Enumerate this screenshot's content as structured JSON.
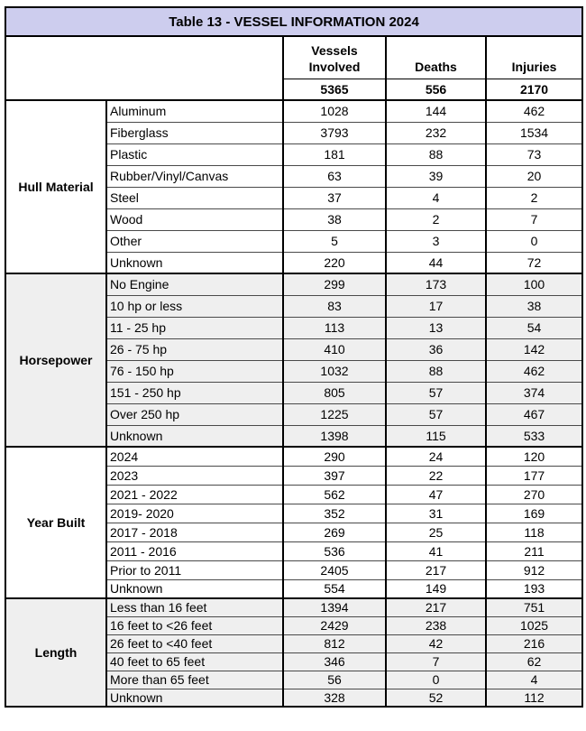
{
  "table": {
    "title": "Table 13 - VESSEL INFORMATION 2024",
    "columns": [
      "Vessels\nInvolved",
      "Deaths",
      "Injuries"
    ],
    "totals": [
      "5365",
      "556",
      "2170"
    ],
    "sections": [
      {
        "label": "Hull Material",
        "rows": [
          {
            "category": "Aluminum",
            "values": [
              "1028",
              "144",
              "462"
            ]
          },
          {
            "category": "Fiberglass",
            "values": [
              "3793",
              "232",
              "1534"
            ]
          },
          {
            "category": "Plastic",
            "values": [
              "181",
              "88",
              "73"
            ]
          },
          {
            "category": "Rubber/Vinyl/Canvas",
            "values": [
              "63",
              "39",
              "20"
            ]
          },
          {
            "category": "Steel",
            "values": [
              "37",
              "4",
              "2"
            ]
          },
          {
            "category": "Wood",
            "values": [
              "38",
              "2",
              "7"
            ]
          },
          {
            "category": "Other",
            "values": [
              "5",
              "3",
              "0"
            ]
          },
          {
            "category": "Unknown",
            "values": [
              "220",
              "44",
              "72"
            ]
          }
        ]
      },
      {
        "label": "Horsepower",
        "rows": [
          {
            "category": "No Engine",
            "values": [
              "299",
              "173",
              "100"
            ]
          },
          {
            "category": "10 hp or less",
            "values": [
              "83",
              "17",
              "38"
            ]
          },
          {
            "category": "11 - 25 hp",
            "values": [
              "113",
              "13",
              "54"
            ]
          },
          {
            "category": "26 - 75 hp",
            "values": [
              "410",
              "36",
              "142"
            ]
          },
          {
            "category": "76 - 150 hp",
            "values": [
              "1032",
              "88",
              "462"
            ]
          },
          {
            "category": "151 - 250 hp",
            "values": [
              "805",
              "57",
              "374"
            ]
          },
          {
            "category": "Over 250 hp",
            "values": [
              "1225",
              "57",
              "467"
            ]
          },
          {
            "category": "Unknown",
            "values": [
              "1398",
              "115",
              "533"
            ]
          }
        ]
      },
      {
        "label": "Year Built",
        "rows": [
          {
            "category": "2024",
            "values": [
              "290",
              "24",
              "120"
            ]
          },
          {
            "category": "2023",
            "values": [
              "397",
              "22",
              "177"
            ]
          },
          {
            "category": "2021 - 2022",
            "values": [
              "562",
              "47",
              "270"
            ]
          },
          {
            "category": "2019- 2020",
            "values": [
              "352",
              "31",
              "169"
            ]
          },
          {
            "category": "2017 - 2018",
            "values": [
              "269",
              "25",
              "118"
            ]
          },
          {
            "category": "2011 - 2016",
            "values": [
              "536",
              "41",
              "211"
            ]
          },
          {
            "category": "Prior to 2011",
            "values": [
              "2405",
              "217",
              "912"
            ]
          },
          {
            "category": "Unknown",
            "values": [
              "554",
              "149",
              "193"
            ]
          }
        ]
      },
      {
        "label": "Length",
        "rows": [
          {
            "category": "Less than 16 feet",
            "values": [
              "1394",
              "217",
              "751"
            ]
          },
          {
            "category": "16 feet to <26 feet",
            "values": [
              "2429",
              "238",
              "1025"
            ]
          },
          {
            "category": "26 feet to <40 feet",
            "values": [
              "812",
              "42",
              "216"
            ]
          },
          {
            "category": "40 feet to 65 feet",
            "values": [
              "346",
              "7",
              "62"
            ]
          },
          {
            "category": "More than 65 feet",
            "values": [
              "56",
              "0",
              "4"
            ]
          },
          {
            "category": "Unknown",
            "values": [
              "328",
              "52",
              "112"
            ]
          }
        ]
      }
    ]
  },
  "colors": {
    "title_bg": "#cdcdee",
    "section_alt_bg": "#efefef",
    "border": "#000000"
  }
}
